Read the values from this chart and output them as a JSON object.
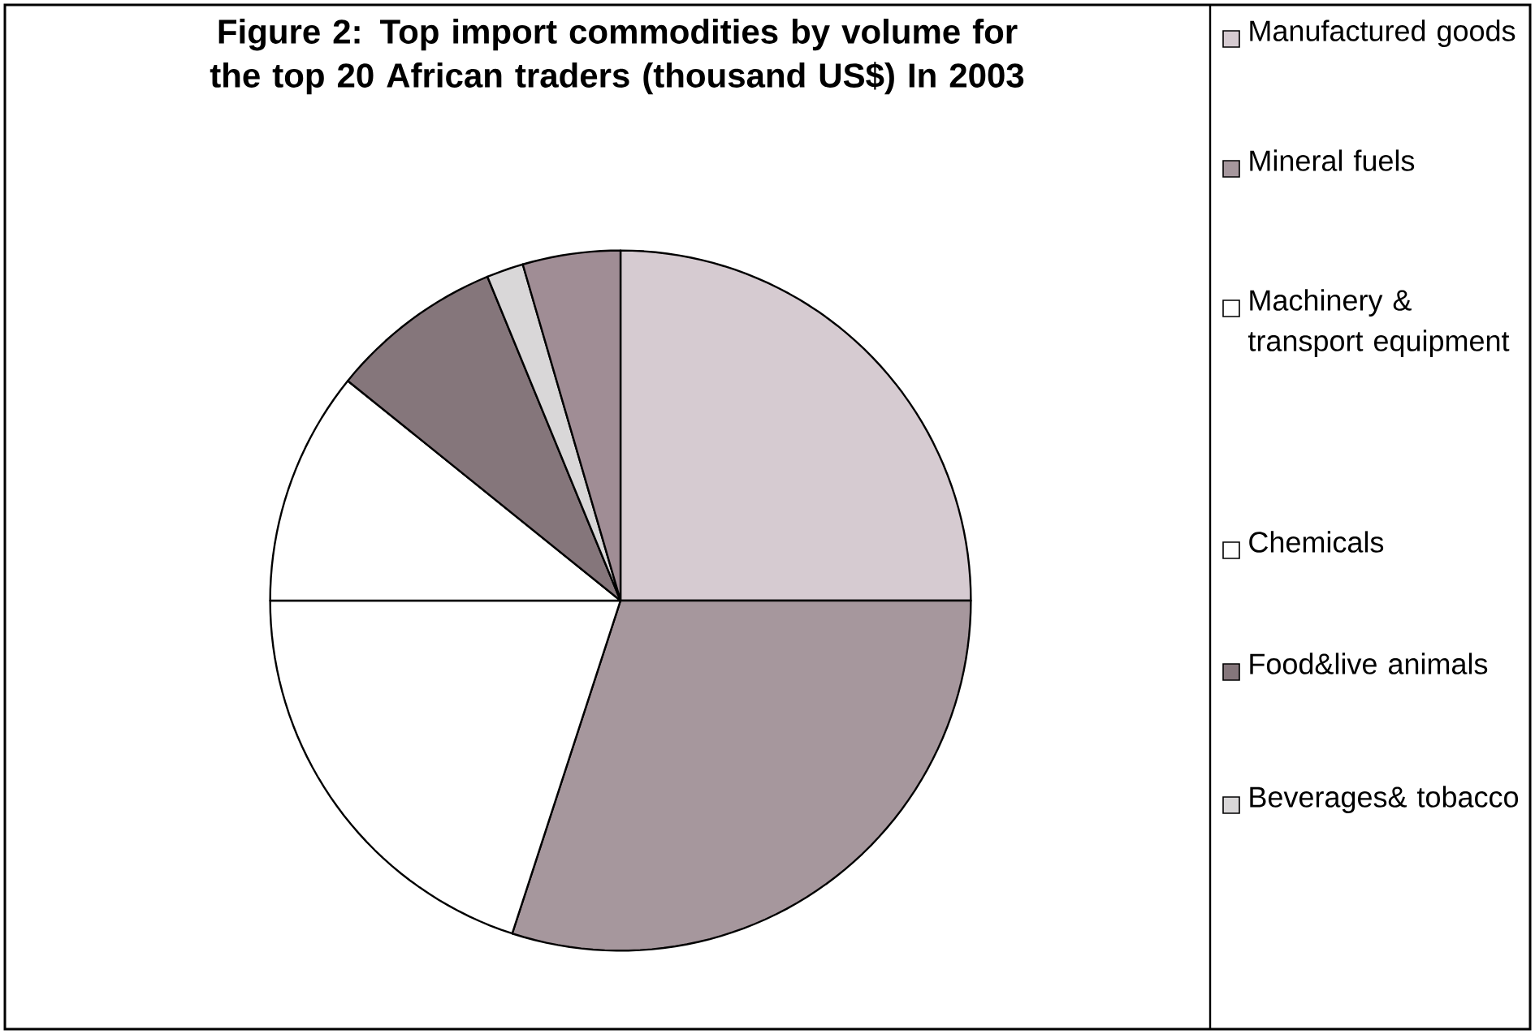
{
  "chart_data": {
    "type": "pie",
    "title": "Figure 2: Top import commodities by volume for the top 20 African traders (thousand US$) In 2003",
    "categories": [
      "Manufactured goods",
      "Mineral fuels",
      "Machinery & transport equipment",
      "Chemicals",
      "Food&live animals",
      "Beverages& tobacco",
      null
    ],
    "values": [
      25,
      30,
      20,
      10.8,
      8,
      1.7,
      4.5
    ],
    "colors": [
      "#d6cbd1",
      "#a6979d",
      "#ffffff",
      "#ffffff",
      "#85767b",
      "#d9d7d8",
      "#a08d95"
    ],
    "legend": "right"
  }
}
